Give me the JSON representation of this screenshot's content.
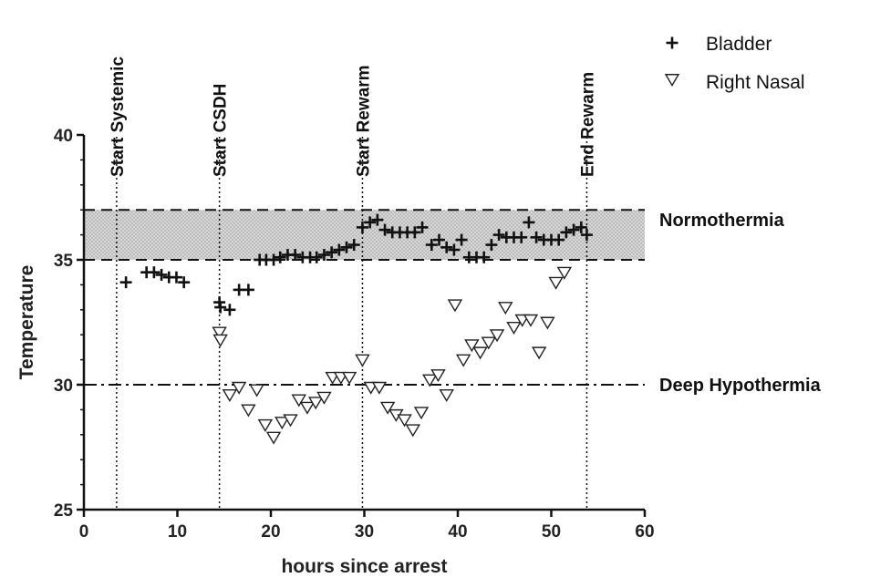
{
  "chart_data": {
    "type": "scatter",
    "xlabel": "hours since arrest",
    "ylabel": "Temperature",
    "xlim": [
      0,
      60
    ],
    "ylim": [
      25,
      40
    ],
    "x_ticks": [
      0,
      10,
      20,
      30,
      40,
      50,
      60
    ],
    "y_ticks": [
      25,
      30,
      35,
      40
    ],
    "x_tick_labels": [
      "0",
      "10",
      "20",
      "30",
      "40",
      "50",
      "60"
    ],
    "y_tick_labels": [
      "25",
      "30",
      "35",
      "40"
    ],
    "grid": false,
    "legend_position": "top-right",
    "normothermia_band": {
      "label": "Normothermia",
      "y_low": 35,
      "y_high": 37
    },
    "deep_hypothermia": {
      "label": "Deep Hypothermia",
      "y": 30
    },
    "events": [
      {
        "label": "Start Systemic",
        "x": 3.5
      },
      {
        "label": "Start CSDH",
        "x": 14.5
      },
      {
        "label": "Start Rewarm",
        "x": 29.8
      },
      {
        "label": "End Rewarm",
        "x": 53.8
      }
    ],
    "series": [
      {
        "name": "Bladder",
        "marker": "plus",
        "points": [
          [
            4.5,
            34.1
          ],
          [
            6.7,
            34.5
          ],
          [
            7.5,
            34.5
          ],
          [
            8.3,
            34.4
          ],
          [
            9.1,
            34.3
          ],
          [
            9.9,
            34.3
          ],
          [
            10.7,
            34.1
          ],
          [
            14.5,
            33.3
          ],
          [
            14.6,
            33.1
          ],
          [
            15.6,
            33.0
          ],
          [
            16.6,
            33.8
          ],
          [
            17.6,
            33.8
          ],
          [
            18.8,
            35.0
          ],
          [
            19.5,
            35.0
          ],
          [
            20.3,
            35.0
          ],
          [
            21.0,
            35.1
          ],
          [
            21.8,
            35.2
          ],
          [
            22.6,
            35.2
          ],
          [
            23.4,
            35.1
          ],
          [
            24.2,
            35.1
          ],
          [
            24.9,
            35.1
          ],
          [
            25.7,
            35.2
          ],
          [
            26.5,
            35.3
          ],
          [
            27.3,
            35.4
          ],
          [
            28.1,
            35.5
          ],
          [
            28.9,
            35.6
          ],
          [
            29.8,
            36.3
          ],
          [
            30.6,
            36.5
          ],
          [
            31.4,
            36.6
          ],
          [
            32.2,
            36.2
          ],
          [
            33.0,
            36.1
          ],
          [
            33.8,
            36.1
          ],
          [
            34.6,
            36.1
          ],
          [
            35.4,
            36.1
          ],
          [
            36.2,
            36.3
          ],
          [
            37.2,
            35.6
          ],
          [
            38.0,
            35.8
          ],
          [
            38.8,
            35.5
          ],
          [
            39.6,
            35.4
          ],
          [
            40.4,
            35.8
          ],
          [
            41.2,
            35.1
          ],
          [
            42.0,
            35.1
          ],
          [
            42.8,
            35.1
          ],
          [
            43.6,
            35.6
          ],
          [
            44.4,
            36.0
          ],
          [
            45.2,
            35.9
          ],
          [
            46.0,
            35.9
          ],
          [
            46.8,
            35.9
          ],
          [
            47.6,
            36.5
          ],
          [
            48.4,
            35.9
          ],
          [
            49.2,
            35.8
          ],
          [
            50.0,
            35.8
          ],
          [
            50.8,
            35.8
          ],
          [
            51.6,
            36.1
          ],
          [
            52.4,
            36.2
          ],
          [
            53.2,
            36.3
          ],
          [
            53.8,
            36.0
          ]
        ]
      },
      {
        "name": "Right Nasal",
        "marker": "triangle-down",
        "points": [
          [
            14.5,
            32.1
          ],
          [
            14.6,
            31.8
          ],
          [
            15.6,
            29.6
          ],
          [
            16.6,
            29.9
          ],
          [
            17.6,
            29.0
          ],
          [
            18.5,
            29.8
          ],
          [
            19.4,
            28.4
          ],
          [
            20.3,
            27.9
          ],
          [
            21.2,
            28.5
          ],
          [
            22.1,
            28.6
          ],
          [
            23.0,
            29.4
          ],
          [
            23.9,
            29.1
          ],
          [
            24.8,
            29.3
          ],
          [
            25.7,
            29.5
          ],
          [
            26.6,
            30.3
          ],
          [
            27.5,
            30.3
          ],
          [
            28.4,
            30.3
          ],
          [
            29.8,
            31.0
          ],
          [
            30.7,
            29.9
          ],
          [
            31.6,
            29.9
          ],
          [
            32.5,
            29.1
          ],
          [
            33.4,
            28.8
          ],
          [
            34.3,
            28.6
          ],
          [
            35.2,
            28.2
          ],
          [
            36.1,
            28.9
          ],
          [
            37.0,
            30.2
          ],
          [
            37.9,
            30.4
          ],
          [
            38.8,
            29.6
          ],
          [
            39.7,
            33.2
          ],
          [
            40.6,
            31.0
          ],
          [
            41.5,
            31.6
          ],
          [
            42.4,
            31.3
          ],
          [
            43.3,
            31.7
          ],
          [
            44.2,
            32.0
          ],
          [
            45.1,
            33.1
          ],
          [
            46.0,
            32.3
          ],
          [
            46.9,
            32.6
          ],
          [
            47.8,
            32.6
          ],
          [
            48.7,
            31.3
          ],
          [
            49.6,
            32.5
          ],
          [
            50.5,
            34.1
          ],
          [
            51.4,
            34.5
          ]
        ]
      }
    ]
  }
}
